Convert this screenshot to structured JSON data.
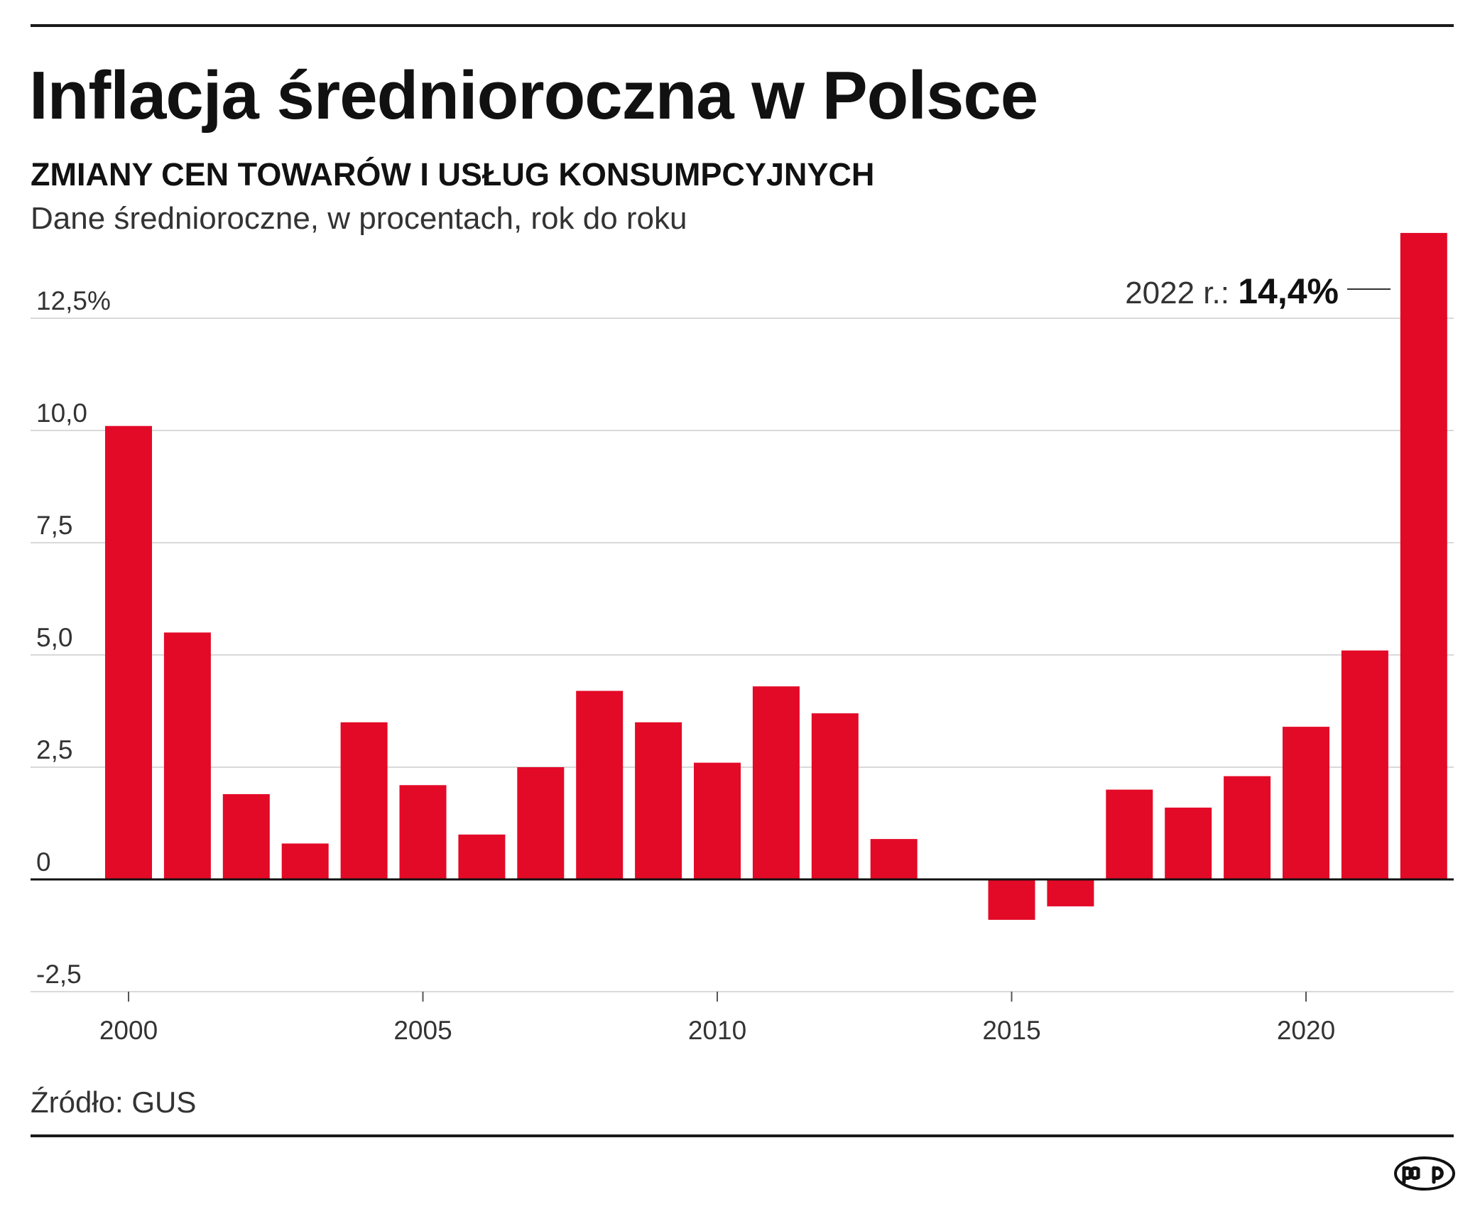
{
  "title": "Inflacja średnioroczna w Polsce",
  "subtitle": "ZMIANY CEN TOWARÓW I USŁUG KONSUMPCYJNYCH",
  "note": "Dane średnioroczne, w procentach, rok do roku",
  "source": "Źródło: GUS",
  "logo_text": "pap",
  "colors": {
    "bar": "#e30a27",
    "text": "#1a1a1a",
    "grid": "#d9d9d9"
  },
  "chart_data": {
    "type": "bar",
    "categories": [
      2000,
      2001,
      2002,
      2003,
      2004,
      2005,
      2006,
      2007,
      2008,
      2009,
      2010,
      2011,
      2012,
      2013,
      2014,
      2015,
      2016,
      2017,
      2018,
      2019,
      2020,
      2021,
      2022
    ],
    "values": [
      10.1,
      5.5,
      1.9,
      0.8,
      3.5,
      2.1,
      1.0,
      2.5,
      4.2,
      3.5,
      2.6,
      4.3,
      3.7,
      0.9,
      0.0,
      -0.9,
      -0.6,
      2.0,
      1.6,
      2.3,
      3.4,
      5.1,
      14.4
    ],
    "ylim": [
      -2.5,
      14.4
    ],
    "y_ticks": [
      {
        "value": 12.5,
        "label": "12,5%"
      },
      {
        "value": 10.0,
        "label": "10,0"
      },
      {
        "value": 7.5,
        "label": "7,5"
      },
      {
        "value": 5.0,
        "label": "5,0"
      },
      {
        "value": 2.5,
        "label": "2,5"
      },
      {
        "value": 0,
        "label": "0"
      },
      {
        "value": -2.5,
        "label": "-2,5"
      }
    ],
    "x_ticks": [
      {
        "value": 2000,
        "label": "2000"
      },
      {
        "value": 2005,
        "label": "2005"
      },
      {
        "value": 2010,
        "label": "2010"
      },
      {
        "value": 2015,
        "label": "2015"
      },
      {
        "value": 2020,
        "label": "2020"
      }
    ],
    "grid": true,
    "annotation": {
      "year": 2022,
      "prefix": "2022 r.:",
      "value_label": "14,4%"
    }
  }
}
